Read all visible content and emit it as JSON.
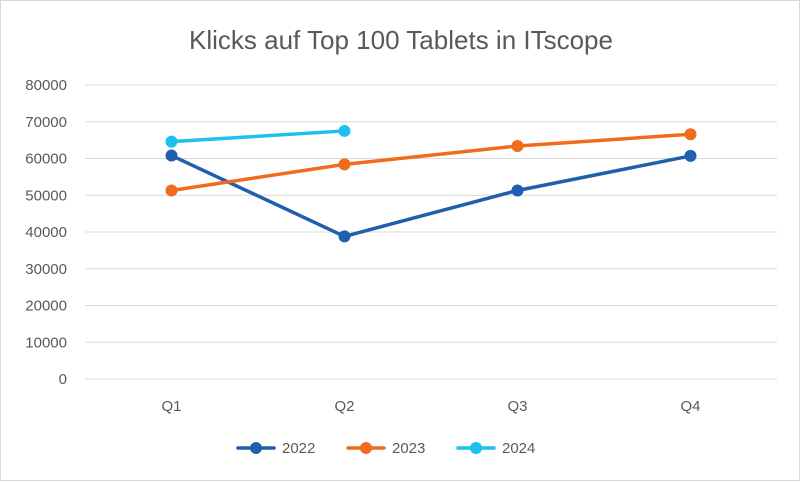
{
  "chart_data": {
    "type": "line",
    "title": "Klicks auf Top 100 Tablets in ITscope",
    "categories": [
      "Q1",
      "Q2",
      "Q3",
      "Q4"
    ],
    "ylim": [
      0,
      80000
    ],
    "yticks": [
      0,
      10000,
      20000,
      30000,
      40000,
      50000,
      60000,
      70000,
      80000
    ],
    "grid": true,
    "legend_position": "bottom",
    "series": [
      {
        "name": "2022",
        "color": "#1f5fad",
        "values": [
          60800,
          38800,
          51300,
          60700
        ]
      },
      {
        "name": "2023",
        "color": "#f26b1d",
        "values": [
          51300,
          58400,
          63400,
          66600
        ]
      },
      {
        "name": "2024",
        "color": "#1fbff0",
        "values": [
          64600,
          67500,
          null,
          null
        ]
      }
    ]
  }
}
